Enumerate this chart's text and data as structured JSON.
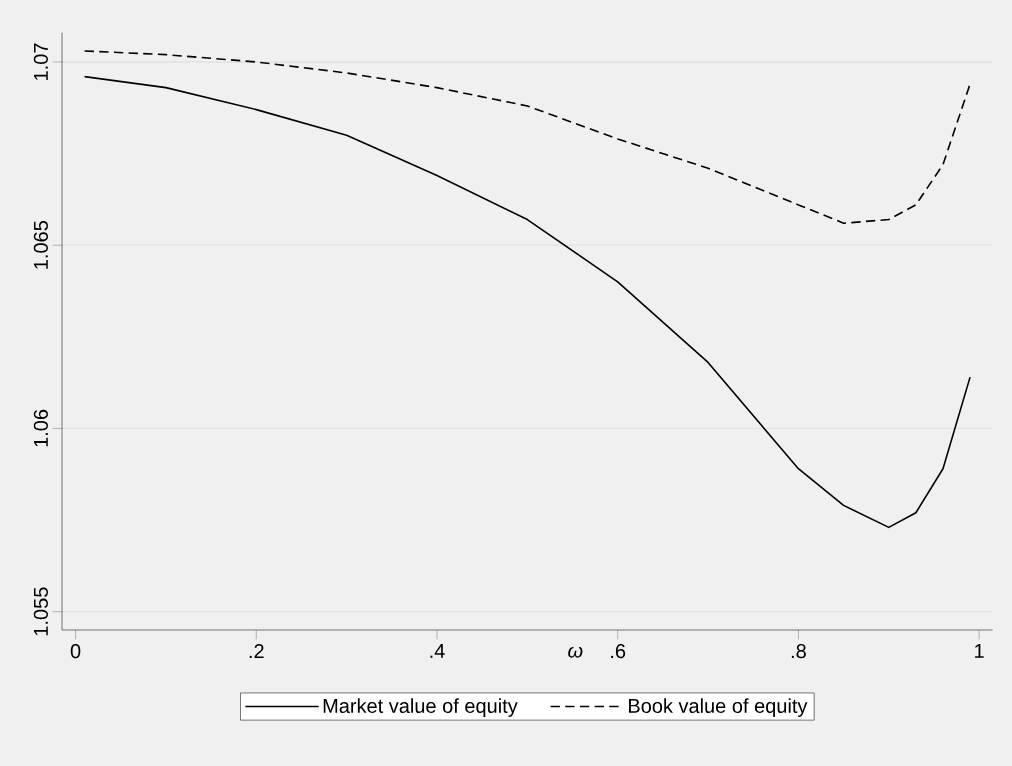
{
  "chart_data": {
    "type": "line",
    "xlabel": "ω",
    "x": [
      0.01,
      0.1,
      0.2,
      0.3,
      0.4,
      0.5,
      0.6,
      0.7,
      0.8,
      0.85,
      0.9,
      0.93,
      0.96,
      0.99
    ],
    "series": [
      {
        "name": "Market value of equity",
        "color": "#000000",
        "line_style": "solid",
        "values": [
          1.0696,
          1.0693,
          1.0687,
          1.068,
          1.0669,
          1.0657,
          1.064,
          1.0618,
          1.0589,
          1.0579,
          1.0573,
          1.0577,
          1.0589,
          1.0614
        ]
      },
      {
        "name": "Book value of equity",
        "color": "#000000",
        "line_style": "dashed",
        "values": [
          1.0703,
          1.0702,
          1.07,
          1.0697,
          1.0693,
          1.0688,
          1.0679,
          1.0671,
          1.0661,
          1.0656,
          1.0657,
          1.0661,
          1.0672,
          1.0694
        ]
      }
    ],
    "xlim": [
      -0.015,
      1.015
    ],
    "ylim": [
      1.0545,
      1.0708
    ],
    "xticks": [
      0,
      {
        "value": 0.2,
        "label": ".2"
      },
      {
        "value": 0.4,
        "label": ".4"
      },
      {
        "value": 0.6,
        "label": ".6"
      },
      {
        "value": 0.8,
        "label": ".8"
      },
      1
    ],
    "yticks": [
      1.055,
      1.06,
      1.065,
      1.07
    ],
    "grid": "y",
    "legend": "bottom",
    "marker": "none"
  }
}
